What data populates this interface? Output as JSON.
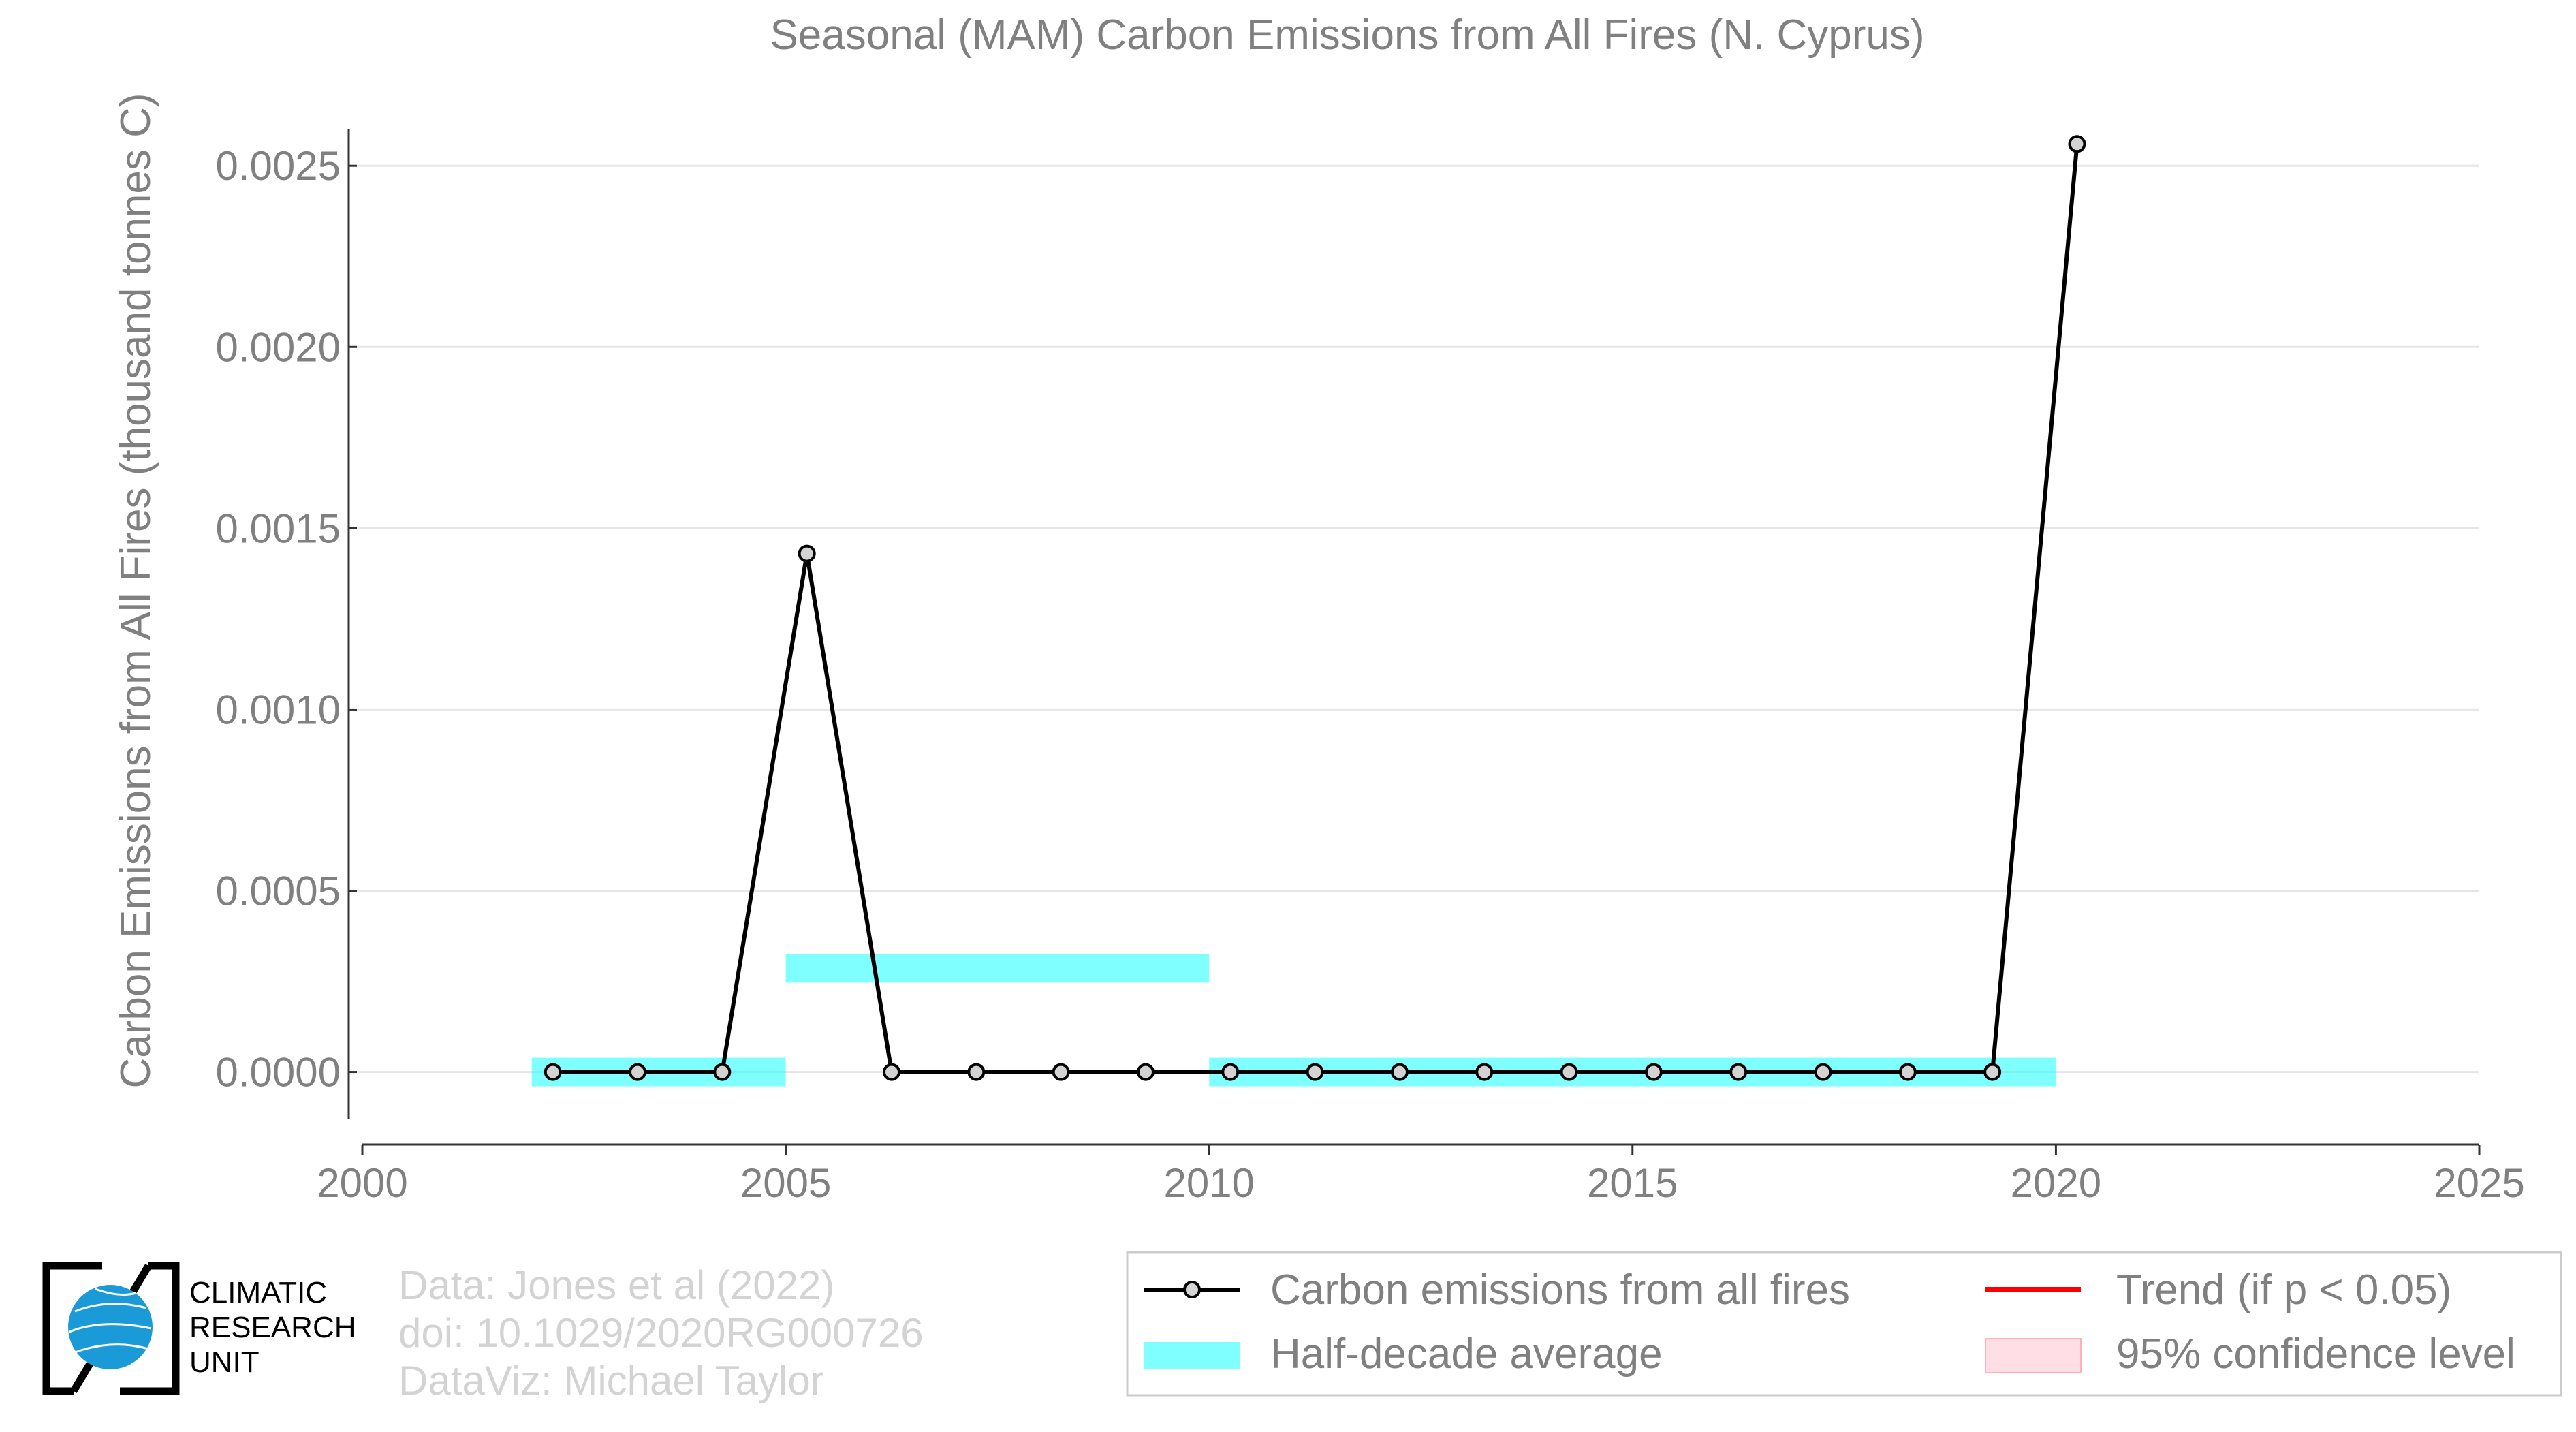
{
  "chart_data": {
    "type": "line",
    "title": "Seasonal (MAM) Carbon Emissions from All Fires (N. Cyprus)",
    "xlabel": "",
    "ylabel": "Carbon Emissions from All Fires (thousand tonnes C)",
    "xlim": [
      2000,
      2025
    ],
    "ylim": [
      -0.0002,
      0.0026
    ],
    "x_ticks": [
      "2000",
      "2005",
      "2010",
      "2015",
      "2020",
      "2025"
    ],
    "y_ticks": [
      "0.0000",
      "0.0005",
      "0.0010",
      "0.0015",
      "0.0020",
      "0.0025"
    ],
    "grid": "horizontal",
    "series": [
      {
        "name": "Carbon emissions from all fires",
        "color": "#000000",
        "x": [
          2002,
          2003,
          2004,
          2005,
          2006,
          2007,
          2008,
          2009,
          2010,
          2011,
          2012,
          2013,
          2014,
          2015,
          2016,
          2017,
          2018,
          2019,
          2020
        ],
        "y": [
          0,
          0,
          0,
          0.00143,
          0,
          0,
          0,
          0,
          0,
          0,
          0,
          0,
          0,
          0,
          0,
          0,
          0,
          0,
          0.00256
        ]
      }
    ],
    "half_decade_average": {
      "name": "Half-decade average",
      "color": "#00ffff",
      "segments": [
        {
          "x0": 2002,
          "x1": 2005,
          "y": 0
        },
        {
          "x0": 2005,
          "x1": 2010,
          "y": 0.000286
        },
        {
          "x0": 2010,
          "x1": 2020,
          "y": 0
        }
      ]
    },
    "legend": {
      "placement": "bottom",
      "items": [
        {
          "label": "Carbon emissions from all fires",
          "kind": "line-marker",
          "color": "#000000"
        },
        {
          "label": "Trend (if p < 0.05)",
          "kind": "line",
          "color": "#ff0000"
        },
        {
          "label": "Half-decade average",
          "kind": "band",
          "color": "#00ffff"
        },
        {
          "label": "95% confidence level",
          "kind": "band",
          "color": "#ffc0cb"
        }
      ]
    }
  },
  "credits": {
    "line1": "Data: Jones et al (2022)",
    "line2": "doi: 10.1029/2020RG000726",
    "line3": "DataViz: Michael Taylor"
  },
  "logo": {
    "line1": "CLIMATIC",
    "line2": "RESEARCH",
    "line3": "UNIT",
    "icon": "globe-icon"
  }
}
